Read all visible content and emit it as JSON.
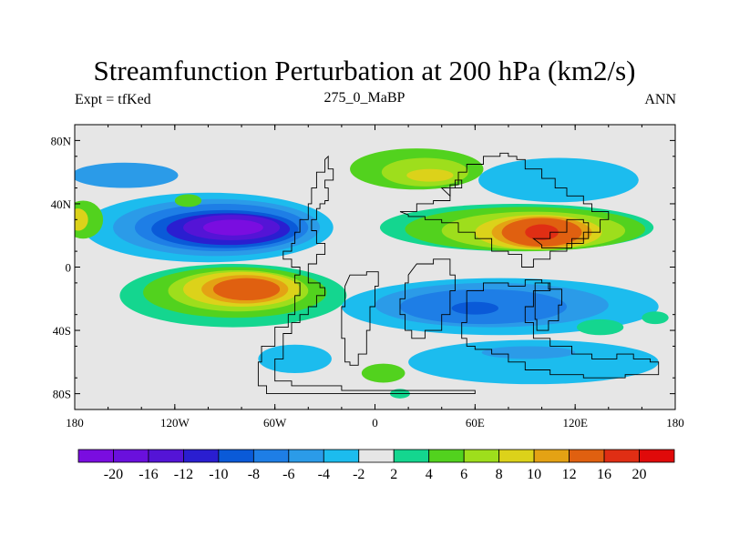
{
  "title": "Streamfunction Perturbation at 200 hPa (km2/s)",
  "left_subtitle": "Expt = tfKed",
  "center_subtitle": "275_0_MaBP",
  "right_subtitle": "ANN",
  "map": {
    "lat_labels": [
      "80N",
      "40N",
      "0",
      "40S",
      "80S"
    ],
    "lon_labels": [
      "180",
      "120W",
      "60W",
      "0",
      "60E",
      "120E",
      "180"
    ],
    "background_color": "#e6e6e6"
  },
  "colorbar": {
    "labels": [
      "-20",
      "-16",
      "-12",
      "-10",
      "-8",
      "-6",
      "-4",
      "-2",
      "2",
      "4",
      "6",
      "8",
      "10",
      "12",
      "16",
      "20"
    ],
    "colors": [
      "#7a0de0",
      "#6a10dd",
      "#5414d6",
      "#2a1ed0",
      "#0a5ad8",
      "#1e7ee6",
      "#2b9be8",
      "#1cbcee",
      "#e6e6e6",
      "#14d68f",
      "#52d21e",
      "#9ede1c",
      "#dcd21a",
      "#e4a214",
      "#e06010",
      "#e02e14",
      "#e00a0a"
    ]
  },
  "fields": [
    {
      "color": "#2b9be8",
      "shape": "ellipse",
      "cx": -150,
      "cy": 58,
      "rx": 32,
      "ry": 8
    },
    {
      "color": "#1cbcee",
      "shape": "ellipse",
      "cx": -100,
      "cy": 25,
      "rx": 75,
      "ry": 22
    },
    {
      "color": "#2b9be8",
      "shape": "ellipse",
      "cx": -95,
      "cy": 25,
      "rx": 62,
      "ry": 18
    },
    {
      "color": "#1e7ee6",
      "shape": "ellipse",
      "cx": -92,
      "cy": 25,
      "rx": 52,
      "ry": 15
    },
    {
      "color": "#0a5ad8",
      "shape": "ellipse",
      "cx": -90,
      "cy": 24,
      "rx": 44,
      "ry": 12
    },
    {
      "color": "#2a1ed0",
      "shape": "ellipse",
      "cx": -88,
      "cy": 24,
      "rx": 37,
      "ry": 10
    },
    {
      "color": "#5414d6",
      "shape": "ellipse",
      "cx": -86,
      "cy": 25,
      "rx": 29,
      "ry": 8
    },
    {
      "color": "#7a0de0",
      "shape": "ellipse",
      "cx": -85,
      "cy": 25,
      "rx": 18,
      "ry": 5
    },
    {
      "color": "#52d21e",
      "shape": "ellipse",
      "cx": -175,
      "cy": 30,
      "rx": 12,
      "ry": 12
    },
    {
      "color": "#dcd21a",
      "shape": "ellipse",
      "cx": -178,
      "cy": 30,
      "rx": 6,
      "ry": 7
    },
    {
      "color": "#52d21e",
      "shape": "ellipse",
      "cx": -112,
      "cy": 42,
      "rx": 8,
      "ry": 4
    },
    {
      "color": "#52d21e",
      "shape": "ellipse",
      "cx": 25,
      "cy": 62,
      "rx": 40,
      "ry": 13
    },
    {
      "color": "#9ede1c",
      "shape": "ellipse",
      "cx": 30,
      "cy": 60,
      "rx": 26,
      "ry": 9
    },
    {
      "color": "#dcd21a",
      "shape": "ellipse",
      "cx": 33,
      "cy": 58,
      "rx": 14,
      "ry": 4
    },
    {
      "color": "#2b9be8",
      "shape": "ellipse",
      "cx": 120,
      "cy": 55,
      "rx": 38,
      "ry": 10
    },
    {
      "color": "#1cbcee",
      "shape": "ellipse",
      "cx": 110,
      "cy": 55,
      "rx": 48,
      "ry": 14
    },
    {
      "color": "#14d68f",
      "shape": "ellipse",
      "cx": 85,
      "cy": 25,
      "rx": 82,
      "ry": 15
    },
    {
      "color": "#52d21e",
      "shape": "ellipse",
      "cx": 90,
      "cy": 24,
      "rx": 72,
      "ry": 14
    },
    {
      "color": "#9ede1c",
      "shape": "ellipse",
      "cx": 95,
      "cy": 23,
      "rx": 55,
      "ry": 12
    },
    {
      "color": "#dcd21a",
      "shape": "ellipse",
      "cx": 98,
      "cy": 22,
      "rx": 38,
      "ry": 11
    },
    {
      "color": "#e4a214",
      "shape": "ellipse",
      "cx": 100,
      "cy": 22,
      "rx": 30,
      "ry": 10
    },
    {
      "color": "#e06010",
      "shape": "ellipse",
      "cx": 100,
      "cy": 22,
      "rx": 24,
      "ry": 9
    },
    {
      "color": "#e02e14",
      "shape": "ellipse",
      "cx": 100,
      "cy": 22,
      "rx": 10,
      "ry": 5
    },
    {
      "color": "#14d68f",
      "shape": "ellipse",
      "cx": -85,
      "cy": -18,
      "rx": 68,
      "ry": 20
    },
    {
      "color": "#52d21e",
      "shape": "ellipse",
      "cx": -84,
      "cy": -16,
      "rx": 55,
      "ry": 16
    },
    {
      "color": "#9ede1c",
      "shape": "ellipse",
      "cx": -82,
      "cy": -15,
      "rx": 42,
      "ry": 13
    },
    {
      "color": "#dcd21a",
      "shape": "ellipse",
      "cx": -80,
      "cy": -14,
      "rx": 35,
      "ry": 11
    },
    {
      "color": "#e4a214",
      "shape": "ellipse",
      "cx": -78,
      "cy": -14,
      "rx": 26,
      "ry": 9
    },
    {
      "color": "#e06010",
      "shape": "ellipse",
      "cx": -77,
      "cy": -14,
      "rx": 20,
      "ry": 7
    },
    {
      "color": "#1cbcee",
      "shape": "ellipse",
      "cx": 75,
      "cy": -25,
      "rx": 95,
      "ry": 18
    },
    {
      "color": "#2b9be8",
      "shape": "ellipse",
      "cx": 70,
      "cy": -24,
      "rx": 70,
      "ry": 14
    },
    {
      "color": "#1e7ee6",
      "shape": "ellipse",
      "cx": 65,
      "cy": -25,
      "rx": 50,
      "ry": 11
    },
    {
      "color": "#0a5ad8",
      "shape": "ellipse",
      "cx": 60,
      "cy": -26,
      "rx": 14,
      "ry": 4
    },
    {
      "color": "#1cbcee",
      "shape": "ellipse",
      "cx": 95,
      "cy": -60,
      "rx": 75,
      "ry": 14
    },
    {
      "color": "#2b9be8",
      "shape": "ellipse",
      "cx": 92,
      "cy": -54,
      "rx": 28,
      "ry": 4
    },
    {
      "color": "#1cbcee",
      "shape": "ellipse",
      "cx": -48,
      "cy": -58,
      "rx": 22,
      "ry": 9
    },
    {
      "color": "#52d21e",
      "shape": "ellipse",
      "cx": 5,
      "cy": -67,
      "rx": 13,
      "ry": 6
    },
    {
      "color": "#14d68f",
      "shape": "ellipse",
      "cx": 135,
      "cy": -38,
      "rx": 14,
      "ry": 5
    },
    {
      "color": "#14d68f",
      "shape": "ellipse",
      "cx": 15,
      "cy": -80,
      "rx": 6,
      "ry": 3
    },
    {
      "color": "#14d68f",
      "shape": "ellipse",
      "cx": 168,
      "cy": -32,
      "rx": 8,
      "ry": 4
    }
  ],
  "land_outline": [
    [
      [
        -28,
        70
      ],
      [
        -28,
        62
      ],
      [
        -25,
        55
      ],
      [
        -30,
        50
      ],
      [
        -28,
        42
      ],
      [
        -30,
        40
      ],
      [
        -33,
        37
      ],
      [
        -35,
        30
      ],
      [
        -38,
        23
      ],
      [
        -35,
        15
      ],
      [
        -30,
        8
      ],
      [
        -35,
        2
      ],
      [
        -40,
        -5
      ],
      [
        -40,
        -10
      ],
      [
        -33,
        -13
      ],
      [
        -30,
        -18
      ],
      [
        -35,
        -25
      ],
      [
        -40,
        -30
      ],
      [
        -45,
        -35
      ],
      [
        -50,
        -42
      ],
      [
        -55,
        -48
      ],
      [
        -55,
        -58
      ],
      [
        -60,
        -62
      ],
      [
        -60,
        -72
      ],
      [
        -50,
        -75
      ],
      [
        -30,
        -75
      ],
      [
        -20,
        -78
      ],
      [
        60,
        -78
      ],
      [
        60,
        -80
      ],
      [
        -60,
        -80
      ],
      [
        -65,
        -75
      ],
      [
        -70,
        -60
      ],
      [
        -68,
        -50
      ],
      [
        -60,
        -38
      ],
      [
        -52,
        -30
      ],
      [
        -48,
        -18
      ],
      [
        -45,
        -10
      ],
      [
        -48,
        -5
      ],
      [
        -45,
        0
      ],
      [
        -50,
        5
      ],
      [
        -55,
        10
      ],
      [
        -50,
        15
      ],
      [
        -48,
        22
      ],
      [
        -45,
        30
      ],
      [
        -40,
        40
      ],
      [
        -38,
        50
      ],
      [
        -35,
        60
      ],
      [
        -30,
        68
      ]
    ],
    [
      [
        -15,
        -5
      ],
      [
        -5,
        -3
      ],
      [
        2,
        -12
      ],
      [
        0,
        -25
      ],
      [
        -3,
        -40
      ],
      [
        -5,
        -55
      ],
      [
        -10,
        -62
      ],
      [
        -15,
        -60
      ],
      [
        -18,
        -45
      ],
      [
        -20,
        -25
      ],
      [
        -18,
        -12
      ]
    ],
    [
      [
        15,
        35
      ],
      [
        25,
        40
      ],
      [
        35,
        42
      ],
      [
        45,
        52
      ],
      [
        50,
        60
      ],
      [
        55,
        65
      ],
      [
        65,
        70
      ],
      [
        75,
        72
      ],
      [
        80,
        70
      ],
      [
        85,
        68
      ],
      [
        90,
        62
      ],
      [
        100,
        56
      ],
      [
        108,
        50
      ],
      [
        115,
        45
      ],
      [
        125,
        40
      ],
      [
        130,
        35
      ],
      [
        140,
        30
      ],
      [
        135,
        22
      ],
      [
        125,
        15
      ],
      [
        115,
        10
      ],
      [
        105,
        5
      ],
      [
        95,
        0
      ],
      [
        88,
        8
      ],
      [
        80,
        10
      ],
      [
        70,
        18
      ],
      [
        60,
        22
      ],
      [
        50,
        28
      ],
      [
        40,
        30
      ],
      [
        30,
        32
      ],
      [
        20,
        33
      ]
    ],
    [
      [
        25,
        2
      ],
      [
        35,
        5
      ],
      [
        45,
        -5
      ],
      [
        48,
        -15
      ],
      [
        45,
        -30
      ],
      [
        40,
        -40
      ],
      [
        30,
        -45
      ],
      [
        22,
        -40
      ],
      [
        18,
        -30
      ],
      [
        15,
        -20
      ],
      [
        18,
        -10
      ],
      [
        20,
        -5
      ]
    ],
    [
      [
        55,
        -15
      ],
      [
        65,
        -10
      ],
      [
        80,
        -12
      ],
      [
        90,
        -8
      ],
      [
        100,
        -10
      ],
      [
        105,
        -15
      ],
      [
        95,
        -25
      ],
      [
        90,
        -35
      ],
      [
        95,
        -45
      ],
      [
        105,
        -50
      ],
      [
        118,
        -55
      ],
      [
        130,
        -58
      ],
      [
        145,
        -55
      ],
      [
        155,
        -58
      ],
      [
        165,
        -60
      ],
      [
        170,
        -68
      ],
      [
        150,
        -70
      ],
      [
        125,
        -68
      ],
      [
        105,
        -65
      ],
      [
        90,
        -60
      ],
      [
        80,
        -55
      ],
      [
        70,
        -52
      ],
      [
        60,
        -50
      ],
      [
        55,
        -45
      ],
      [
        52,
        -35
      ],
      [
        55,
        -25
      ]
    ],
    [
      [
        96,
        -10
      ],
      [
        104,
        -14
      ],
      [
        112,
        -24
      ],
      [
        110,
        -34
      ],
      [
        104,
        -40
      ],
      [
        97,
        -33
      ],
      [
        96,
        -24
      ]
    ],
    [
      [
        95,
        18
      ],
      [
        105,
        22
      ],
      [
        115,
        30
      ],
      [
        125,
        28
      ],
      [
        128,
        18
      ],
      [
        118,
        12
      ],
      [
        108,
        12
      ],
      [
        100,
        14
      ]
    ],
    [
      [
        40,
        50
      ],
      [
        48,
        55
      ],
      [
        52,
        50
      ],
      [
        45,
        45
      ]
    ]
  ]
}
